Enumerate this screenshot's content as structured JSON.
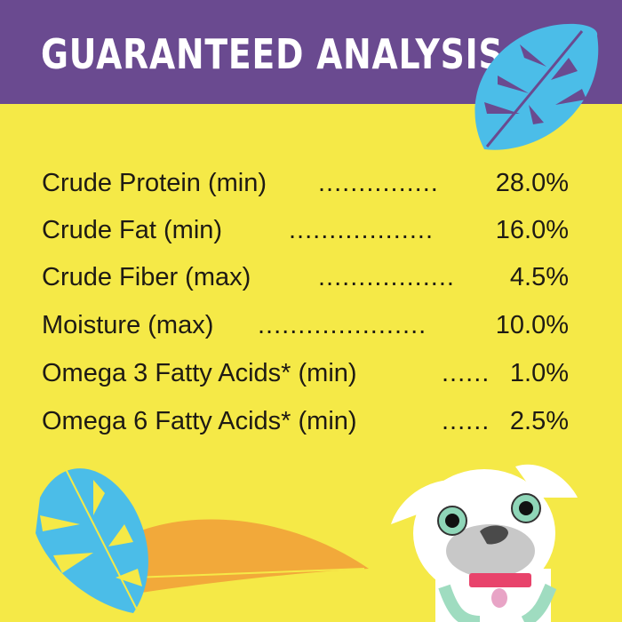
{
  "header": {
    "title": "GUARANTEED ANALYSIS"
  },
  "colors": {
    "header_bg": "#6a4a90",
    "background": "#f5e947",
    "leaf": "#4bbde8",
    "palm": "#f2a93a",
    "collar": "#e8436b"
  },
  "analysis": [
    {
      "label": "Crude Protein (min)",
      "leader": "...............",
      "value": "28.0%"
    },
    {
      "label": "Crude Fat (min)",
      "leader": "..................",
      "value": "16.0%"
    },
    {
      "label": "Crude Fiber (max)",
      "leader": ".................",
      "value": "4.5%"
    },
    {
      "label": "Moisture (max)",
      "leader": ".....................",
      "value": "10.0%"
    },
    {
      "label": "Omega 3 Fatty Acids* (min)",
      "leader": "......",
      "value": "1.0%"
    },
    {
      "label": "Omega 6 Fatty Acids* (min)",
      "leader": "......",
      "value": "2.5%"
    }
  ]
}
